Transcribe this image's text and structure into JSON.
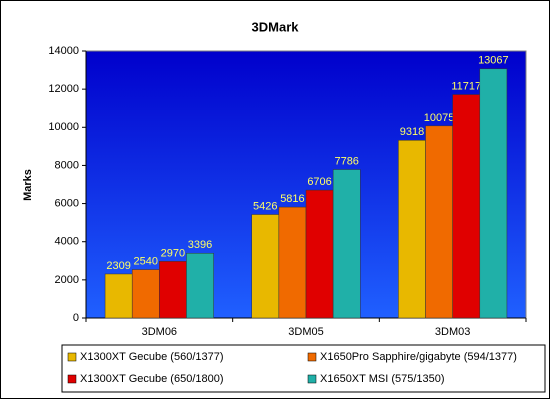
{
  "chart_data": {
    "type": "bar",
    "title": "3DMark",
    "y_label": "Marks",
    "categories": [
      "3DM06",
      "3DM05",
      "3DM03"
    ],
    "series": [
      {
        "name": "X1300XT Gecube (560/1377)",
        "color": "#e8b800",
        "values": [
          2309,
          5426,
          9318
        ]
      },
      {
        "name": "X1650Pro Sapphire/gigabyte (594/1377)",
        "color": "#f06a00",
        "values": [
          2540,
          5816,
          10075
        ]
      },
      {
        "name": "X1300XT Gecube (650/1800)",
        "color": "#e00000",
        "values": [
          2970,
          6706,
          11717
        ]
      },
      {
        "name": "X1650XT MSI (575/1350)",
        "color": "#20b0a8",
        "values": [
          3396,
          7786,
          13067
        ]
      }
    ],
    "ylim": [
      0,
      14000
    ],
    "yticks": [
      0,
      2000,
      4000,
      6000,
      8000,
      10000,
      12000,
      14000
    ],
    "grid": false
  }
}
